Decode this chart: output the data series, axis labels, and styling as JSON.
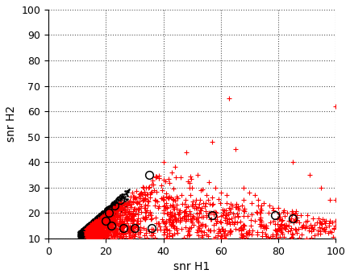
{
  "xlim": [
    0,
    100
  ],
  "ylim": [
    10,
    100
  ],
  "xlabel": "snr H1",
  "ylabel": "snr H2",
  "xticks": [
    0,
    20,
    40,
    60,
    80,
    100
  ],
  "yticks": [
    10,
    20,
    30,
    40,
    50,
    60,
    70,
    80,
    90,
    100
  ],
  "grid_color": "#555555",
  "bg_color": "#ffffff",
  "black_circles": [
    [
      25,
      25
    ],
    [
      23,
      23
    ],
    [
      21,
      20
    ],
    [
      20,
      17
    ],
    [
      22,
      15
    ],
    [
      26,
      14
    ],
    [
      30,
      14
    ],
    [
      36,
      14
    ],
    [
      35,
      35
    ],
    [
      57,
      19
    ],
    [
      79,
      19
    ],
    [
      85,
      18
    ]
  ],
  "red_sparse_points": [
    [
      40,
      40
    ],
    [
      43,
      36
    ],
    [
      46,
      34
    ],
    [
      50,
      30
    ],
    [
      53,
      29
    ],
    [
      55,
      27
    ],
    [
      57,
      26
    ],
    [
      58,
      30
    ],
    [
      60,
      28
    ],
    [
      62,
      27
    ],
    [
      63,
      65
    ],
    [
      65,
      45
    ],
    [
      57,
      48
    ],
    [
      85,
      40
    ],
    [
      91,
      35
    ],
    [
      95,
      30
    ],
    [
      100,
      25
    ],
    [
      68,
      30
    ],
    [
      70,
      28
    ],
    [
      72,
      27
    ],
    [
      73,
      25
    ],
    [
      75,
      24
    ],
    [
      77,
      23
    ],
    [
      80,
      22
    ],
    [
      82,
      21
    ],
    [
      85,
      20
    ],
    [
      88,
      19
    ],
    [
      90,
      19
    ],
    [
      92,
      18
    ],
    [
      94,
      18
    ],
    [
      96,
      17
    ],
    [
      98,
      17
    ],
    [
      100,
      17
    ],
    [
      100,
      62
    ],
    [
      98,
      25
    ],
    [
      44,
      38
    ],
    [
      48,
      44
    ],
    [
      52,
      35
    ],
    [
      56,
      32
    ],
    [
      68,
      25
    ],
    [
      73,
      23
    ],
    [
      78,
      22
    ],
    [
      83,
      20
    ],
    [
      90,
      17
    ],
    [
      95,
      16
    ],
    [
      100,
      15
    ],
    [
      62,
      24
    ],
    [
      64,
      23
    ],
    [
      66,
      22
    ],
    [
      68,
      21
    ],
    [
      48,
      19
    ],
    [
      50,
      18
    ],
    [
      52,
      17
    ]
  ]
}
